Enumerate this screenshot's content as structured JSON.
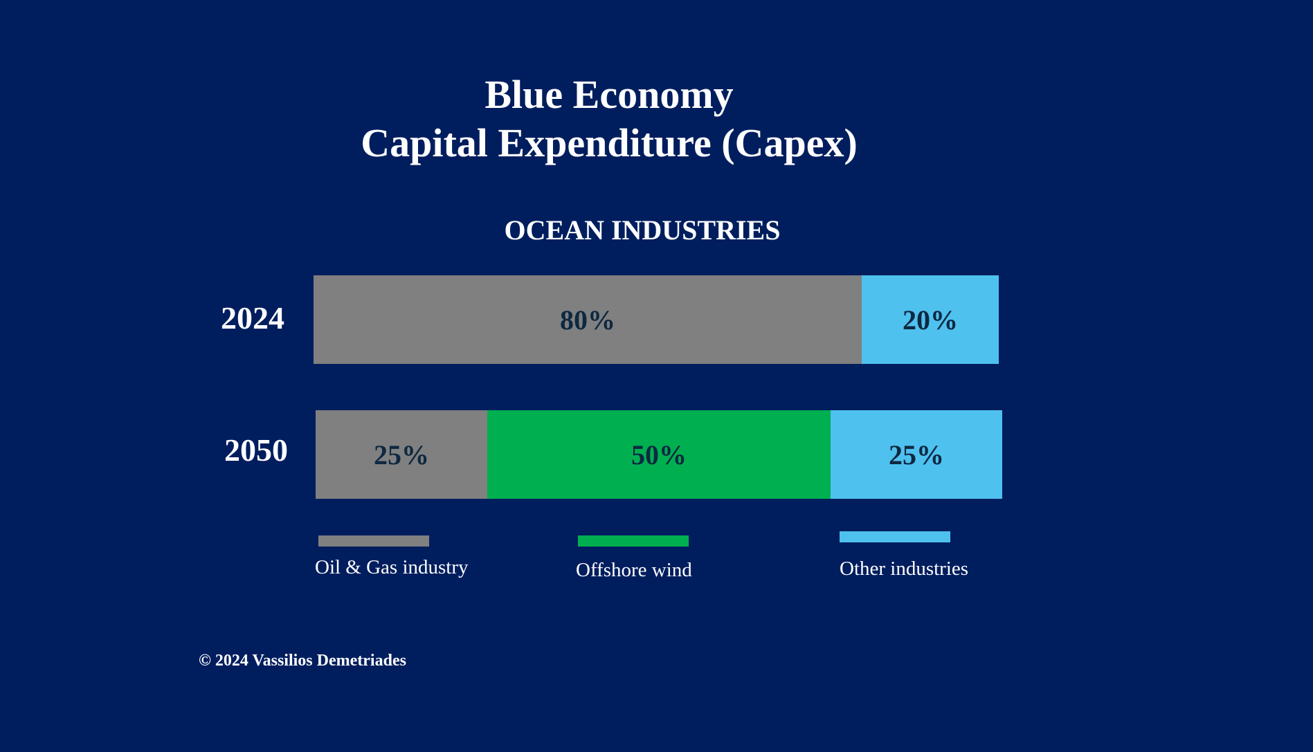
{
  "title": {
    "line1": "Blue Economy",
    "line2": "Capital Expenditure (Capex)"
  },
  "copyright": "© 2024 Vassilios Demetriades",
  "chart_data": {
    "type": "bar",
    "orientation": "horizontal",
    "stacked": true,
    "title": "OCEAN INDUSTRIES",
    "categories": [
      "2024",
      "2050"
    ],
    "series": [
      {
        "name": "Oil & Gas industry",
        "color": "#808080",
        "values": [
          80,
          25
        ],
        "labels": [
          "80%",
          "25%"
        ]
      },
      {
        "name": "Offshore wind",
        "color": "#00b050",
        "values": [
          0,
          50
        ],
        "labels": [
          "",
          "50%"
        ]
      },
      {
        "name": "Other industries",
        "color": "#4fc1ef",
        "values": [
          20,
          25
        ],
        "labels": [
          "20%",
          "25%"
        ]
      }
    ],
    "xlim": [
      0,
      100
    ],
    "value_label_color": "#0e2841",
    "legend_position": "bottom"
  }
}
